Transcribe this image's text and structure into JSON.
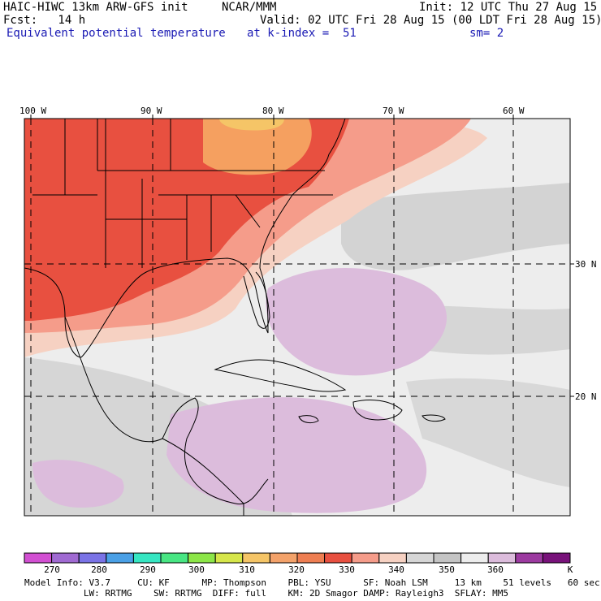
{
  "header": {
    "model": "HAIC-HIWC 13km ARW-GFS init",
    "center": "NCAR/MMM",
    "init": "Init: 12 UTC Thu 27 Aug 15",
    "fcst": "Fcst:   14 h",
    "valid": "Valid: 02 UTC Fri 28 Aug 15 (00 LDT Fri 28 Aug 15)",
    "field": "Equivalent potential temperature",
    "level": "at k-index =  51",
    "smooth": "sm= 2"
  },
  "map": {
    "lon_labels": [
      "100 W",
      "90 W",
      "80 W",
      "70 W",
      "60 W"
    ],
    "lat_labels": [
      "30 N",
      "20 N"
    ]
  },
  "colorbar": {
    "labels": [
      "270",
      "280",
      "290",
      "300",
      "310",
      "320",
      "330",
      "340",
      "350",
      "360"
    ],
    "unit": "K",
    "colors": [
      "#d24fd2",
      "#a06ad2",
      "#7a73e6",
      "#4aa0e6",
      "#36e6c2",
      "#48e683",
      "#8ce648",
      "#d6e64a",
      "#f5c567",
      "#f3a26a",
      "#ee7e52",
      "#e85040",
      "#f59c8a",
      "#f6d1c2",
      "#d6d6d6",
      "#c4c4c4",
      "#ededed",
      "#dcbcdc",
      "#9c3aa0",
      "#78127a"
    ]
  },
  "footer": {
    "line1": "Model Info: V3.7     CU: KF      MP: Thompson    PBL: YSU      SF: Noah LSM     13 km    51 levels   60 sec",
    "line2": "           LW: RRTMG    SW: RRTMG  DIFF: full    KM: 2D Smagor DAMP: Rayleigh3  SFLAY: MM5"
  }
}
